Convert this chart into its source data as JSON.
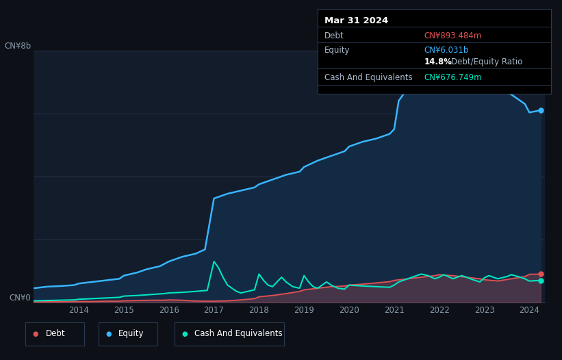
{
  "bg_color": "#0d1117",
  "plot_bg": "#131c2b",
  "grid_color": "#2a3a50",
  "equity_color": "#38b6ff",
  "equity_fill": "#132a45",
  "debt_color": "#e05252",
  "cash_color": "#00e5c0",
  "label_color": "#8899aa",
  "y_label_top": "CN¥8b",
  "y_label_bottom": "CN¥0",
  "x_ticks": [
    "2014",
    "2015",
    "2016",
    "2017",
    "2018",
    "2019",
    "2020",
    "2021",
    "2022",
    "2023",
    "2024"
  ],
  "x_tick_vals": [
    2014,
    2015,
    2016,
    2017,
    2018,
    2019,
    2020,
    2021,
    2022,
    2023,
    2024
  ],
  "legend_items": [
    "Debt",
    "Equity",
    "Cash And Equivalents"
  ],
  "legend_colors": [
    "#e05252",
    "#38b6ff",
    "#00e5c0"
  ],
  "tooltip": {
    "date": "Mar 31 2024",
    "debt_label": "Debt",
    "debt_value": "CN¥893.484m",
    "debt_color": "#e05252",
    "equity_label": "Equity",
    "equity_value": "CN¥6.031b",
    "equity_color": "#38b6ff",
    "ratio_value": "14.8%",
    "ratio_label": "Debt/Equity Ratio",
    "cash_label": "Cash And Equivalents",
    "cash_value": "CN¥676.749m",
    "cash_color": "#00e5c0"
  },
  "equity_x": [
    2013.0,
    2013.3,
    2013.6,
    2013.9,
    2014.0,
    2014.3,
    2014.6,
    2014.9,
    2015.0,
    2015.3,
    2015.5,
    2015.8,
    2016.0,
    2016.3,
    2016.6,
    2016.75,
    2016.8,
    2017.0,
    2017.3,
    2017.6,
    2017.9,
    2018.0,
    2018.3,
    2018.6,
    2018.9,
    2019.0,
    2019.3,
    2019.6,
    2019.9,
    2020.0,
    2020.3,
    2020.6,
    2020.9,
    2021.0,
    2021.1,
    2021.3,
    2021.5,
    2021.75,
    2022.0,
    2022.3,
    2022.5,
    2022.75,
    2023.0,
    2023.3,
    2023.6,
    2023.9,
    2024.0,
    2024.25
  ],
  "equity_y": [
    0.45,
    0.5,
    0.52,
    0.55,
    0.6,
    0.65,
    0.7,
    0.75,
    0.85,
    0.95,
    1.05,
    1.15,
    1.3,
    1.45,
    1.55,
    1.65,
    1.68,
    3.3,
    3.45,
    3.55,
    3.65,
    3.75,
    3.9,
    4.05,
    4.15,
    4.3,
    4.5,
    4.65,
    4.8,
    4.95,
    5.1,
    5.2,
    5.35,
    5.5,
    6.4,
    6.8,
    7.0,
    7.1,
    7.15,
    7.2,
    7.25,
    7.1,
    6.9,
    6.75,
    6.6,
    6.3,
    6.03,
    6.1
  ],
  "debt_x": [
    2013.0,
    2013.3,
    2013.6,
    2013.9,
    2014.0,
    2014.3,
    2014.6,
    2014.9,
    2015.0,
    2015.3,
    2015.6,
    2015.9,
    2016.0,
    2016.3,
    2016.5,
    2016.75,
    2017.0,
    2017.3,
    2017.6,
    2017.9,
    2018.0,
    2018.3,
    2018.6,
    2018.9,
    2019.0,
    2019.3,
    2019.6,
    2019.9,
    2020.0,
    2020.3,
    2020.6,
    2020.9,
    2021.0,
    2021.3,
    2021.6,
    2021.9,
    2022.0,
    2022.3,
    2022.6,
    2022.9,
    2023.0,
    2023.3,
    2023.6,
    2023.9,
    2024.0,
    2024.25
  ],
  "debt_y": [
    0.02,
    0.02,
    0.02,
    0.03,
    0.03,
    0.03,
    0.04,
    0.04,
    0.05,
    0.06,
    0.07,
    0.07,
    0.08,
    0.07,
    0.05,
    0.04,
    0.04,
    0.05,
    0.08,
    0.12,
    0.18,
    0.22,
    0.28,
    0.35,
    0.4,
    0.45,
    0.5,
    0.52,
    0.55,
    0.58,
    0.62,
    0.66,
    0.7,
    0.75,
    0.8,
    0.85,
    0.88,
    0.85,
    0.8,
    0.75,
    0.72,
    0.68,
    0.75,
    0.82,
    0.893,
    0.9
  ],
  "cash_x": [
    2013.0,
    2013.3,
    2013.6,
    2013.9,
    2014.0,
    2014.3,
    2014.6,
    2014.9,
    2015.0,
    2015.3,
    2015.6,
    2015.9,
    2016.0,
    2016.3,
    2016.6,
    2016.75,
    2016.85,
    2017.0,
    2017.1,
    2017.2,
    2017.3,
    2017.5,
    2017.6,
    2017.75,
    2017.9,
    2018.0,
    2018.1,
    2018.2,
    2018.3,
    2018.5,
    2018.6,
    2018.75,
    2018.9,
    2019.0,
    2019.1,
    2019.2,
    2019.3,
    2019.5,
    2019.6,
    2019.75,
    2019.9,
    2020.0,
    2020.3,
    2020.6,
    2020.9,
    2021.0,
    2021.1,
    2021.2,
    2021.3,
    2021.5,
    2021.6,
    2021.75,
    2021.9,
    2022.0,
    2022.1,
    2022.2,
    2022.3,
    2022.5,
    2022.6,
    2022.75,
    2022.9,
    2023.0,
    2023.1,
    2023.2,
    2023.3,
    2023.5,
    2023.6,
    2023.75,
    2023.9,
    2024.0,
    2024.25
  ],
  "cash_y": [
    0.05,
    0.06,
    0.07,
    0.08,
    0.1,
    0.12,
    0.14,
    0.16,
    0.2,
    0.22,
    0.25,
    0.28,
    0.3,
    0.32,
    0.35,
    0.37,
    0.38,
    1.3,
    1.1,
    0.8,
    0.55,
    0.35,
    0.3,
    0.35,
    0.4,
    0.9,
    0.7,
    0.55,
    0.5,
    0.8,
    0.65,
    0.5,
    0.45,
    0.85,
    0.65,
    0.5,
    0.45,
    0.65,
    0.55,
    0.45,
    0.42,
    0.55,
    0.52,
    0.5,
    0.48,
    0.55,
    0.65,
    0.7,
    0.75,
    0.85,
    0.9,
    0.85,
    0.75,
    0.8,
    0.88,
    0.82,
    0.75,
    0.85,
    0.8,
    0.72,
    0.65,
    0.78,
    0.85,
    0.8,
    0.75,
    0.82,
    0.88,
    0.82,
    0.75,
    0.677,
    0.7
  ],
  "ylim": [
    0,
    8.0
  ],
  "xlim": [
    2013.0,
    2024.35
  ],
  "gridlines_y": [
    0,
    2.0,
    4.0,
    6.0,
    8.0
  ]
}
